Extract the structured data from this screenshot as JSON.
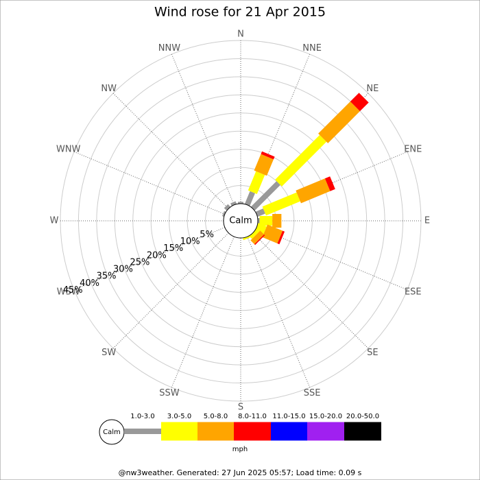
{
  "chart_data": {
    "type": "wind_rose",
    "title": "Wind rose for 21 Apr 2015",
    "directions": [
      "N",
      "NNE",
      "NE",
      "ENE",
      "E",
      "ESE",
      "SE",
      "SSE",
      "S",
      "SSW",
      "SW",
      "WSW",
      "W",
      "WNW",
      "NW",
      "NNW"
    ],
    "calm_label": "Calm",
    "unit": "mph",
    "ylim": [
      0,
      45
    ],
    "yticks": [
      {
        "value": 5,
        "label": "5%"
      },
      {
        "value": 10,
        "label": "10%"
      },
      {
        "value": 15,
        "label": "15%"
      },
      {
        "value": 20,
        "label": "20%"
      },
      {
        "value": 25,
        "label": "25%"
      },
      {
        "value": 30,
        "label": "30%"
      },
      {
        "value": 35,
        "label": "35%"
      },
      {
        "value": 40,
        "label": "40%"
      },
      {
        "value": 45,
        "label": "45%"
      }
    ],
    "series": [
      {
        "name": "1.0-3.0",
        "color": "#999999",
        "values": [
          0.5,
          3.8,
          10.0,
          2.3,
          0.5,
          0,
          0,
          0,
          0,
          0,
          0,
          0,
          0,
          0.5,
          1.0,
          0.8
        ]
      },
      {
        "name": "3.0-5.0",
        "color": "#ffff00",
        "values": [
          0,
          5.7,
          17.4,
          10.2,
          3.5,
          2.5,
          1.0,
          0.5,
          0,
          0,
          0,
          0,
          0,
          0,
          0,
          0
        ]
      },
      {
        "name": "5.0-8.0",
        "color": "#ffa500",
        "values": [
          0,
          4.9,
          12.5,
          8.7,
          2.5,
          4.5,
          1.5,
          0,
          0,
          0,
          0,
          0,
          0,
          0,
          0,
          0
        ]
      },
      {
        "name": "8.0-11.0",
        "color": "#ff0000",
        "values": [
          0,
          0.8,
          3.4,
          1.5,
          0,
          0.6,
          0.3,
          0,
          0,
          0,
          0,
          0,
          0,
          0,
          0,
          0
        ]
      },
      {
        "name": "11.0-15.0",
        "color": "#0000ff",
        "values": [
          0,
          0,
          0,
          0,
          0,
          0,
          0,
          0,
          0,
          0,
          0,
          0,
          0,
          0,
          0,
          0
        ]
      },
      {
        "name": "15.0-20.0",
        "color": "#a020f0",
        "values": [
          0,
          0,
          0,
          0,
          0,
          0,
          0,
          0,
          0,
          0,
          0,
          0,
          0,
          0,
          0,
          0
        ]
      },
      {
        "name": "20.0-50.0",
        "color": "#000000",
        "values": [
          0,
          0,
          0,
          0,
          0,
          0,
          0,
          0,
          0,
          0,
          0,
          0,
          0,
          0,
          0,
          0
        ]
      }
    ]
  },
  "footer": "@nw3weather. Generated: 27 Jun 2025 05:57; Load time: 0.09 s"
}
